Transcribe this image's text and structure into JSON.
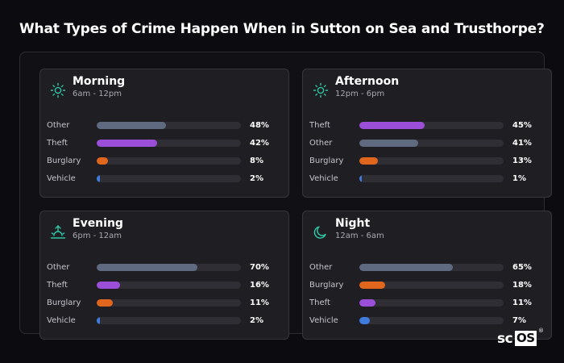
{
  "title": "What Types of Crime Happen When in Sutton on Sea and Trusthorpe?",
  "colors": {
    "Other": "#5f6a80",
    "Theft": "#9b4fd9",
    "Burglary": "#e0661e",
    "Vehicle": "#3f7bdc",
    "icon": "#2ec4a3"
  },
  "chart_data": [
    {
      "type": "bar",
      "orientation": "horizontal",
      "title": "Morning",
      "subtitle": "6am - 12pm",
      "icon": "sun-icon",
      "xlim": [
        0,
        100
      ],
      "rows": [
        {
          "label": "Other",
          "value": 48,
          "display": "48%"
        },
        {
          "label": "Theft",
          "value": 42,
          "display": "42%"
        },
        {
          "label": "Burglary",
          "value": 8,
          "display": "8%"
        },
        {
          "label": "Vehicle",
          "value": 2,
          "display": "2%"
        }
      ]
    },
    {
      "type": "bar",
      "orientation": "horizontal",
      "title": "Afternoon",
      "subtitle": "12pm - 6pm",
      "icon": "sun-icon",
      "xlim": [
        0,
        100
      ],
      "rows": [
        {
          "label": "Theft",
          "value": 45,
          "display": "45%"
        },
        {
          "label": "Other",
          "value": 41,
          "display": "41%"
        },
        {
          "label": "Burglary",
          "value": 13,
          "display": "13%"
        },
        {
          "label": "Vehicle",
          "value": 1,
          "display": "1%"
        }
      ]
    },
    {
      "type": "bar",
      "orientation": "horizontal",
      "title": "Evening",
      "subtitle": "6pm - 12am",
      "icon": "sunset-icon",
      "xlim": [
        0,
        100
      ],
      "rows": [
        {
          "label": "Other",
          "value": 70,
          "display": "70%"
        },
        {
          "label": "Theft",
          "value": 16,
          "display": "16%"
        },
        {
          "label": "Burglary",
          "value": 11,
          "display": "11%"
        },
        {
          "label": "Vehicle",
          "value": 2,
          "display": "2%"
        }
      ]
    },
    {
      "type": "bar",
      "orientation": "horizontal",
      "title": "Night",
      "subtitle": "12am - 6am",
      "icon": "moon-icon",
      "xlim": [
        0,
        100
      ],
      "rows": [
        {
          "label": "Other",
          "value": 65,
          "display": "65%"
        },
        {
          "label": "Burglary",
          "value": 18,
          "display": "18%"
        },
        {
          "label": "Theft",
          "value": 11,
          "display": "11%"
        },
        {
          "label": "Vehicle",
          "value": 7,
          "display": "7%"
        }
      ]
    }
  ],
  "logo": {
    "part1": "sc",
    "part2": "OS",
    "mark": "®"
  }
}
